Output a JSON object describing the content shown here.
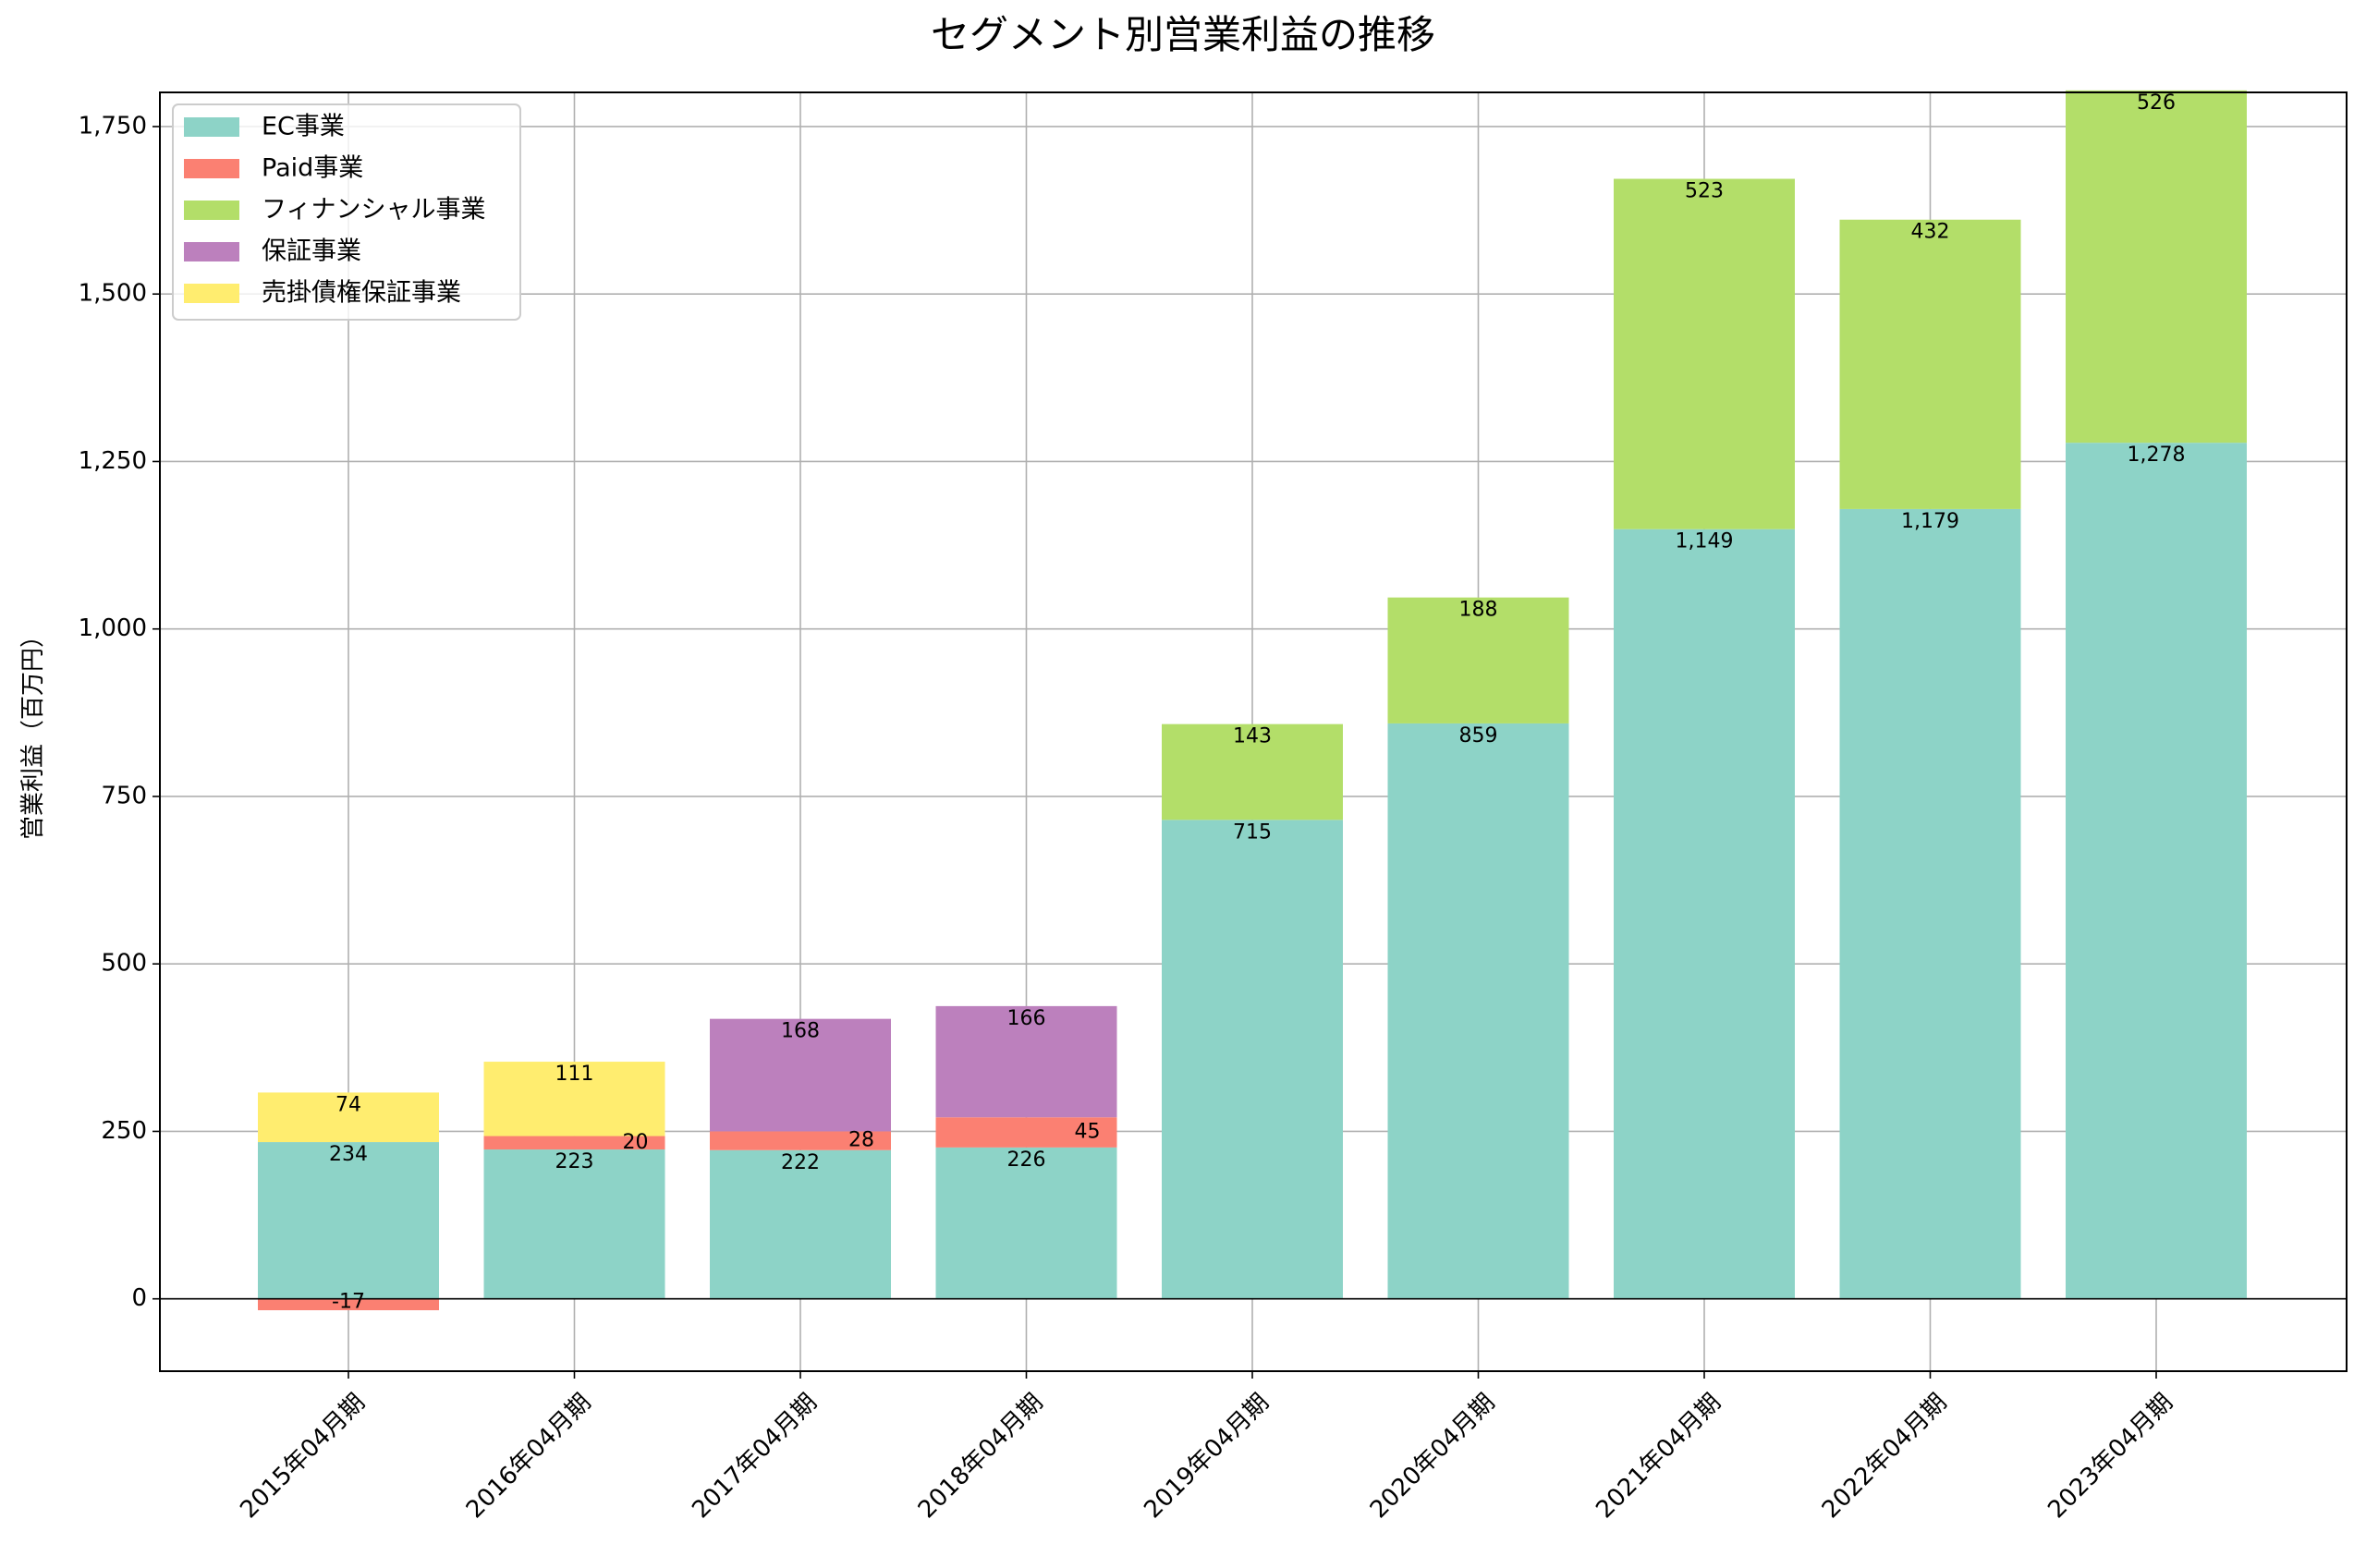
{
  "chart_data": {
    "type": "bar",
    "stacked": true,
    "title": "セグメント別営業利益の推移",
    "xlabel": "",
    "ylabel": "営業利益（百万円）",
    "ylim": [
      -108,
      1801
    ],
    "yticks": [
      0,
      250,
      500,
      750,
      1000,
      1250,
      1500,
      1750
    ],
    "ytick_labels": [
      "0",
      "250",
      "500",
      "750",
      "1,000",
      "1,250",
      "1,500",
      "1,750"
    ],
    "grid": true,
    "legend_position": "top-left",
    "categories": [
      "2015年04月期",
      "2016年04月期",
      "2017年04月期",
      "2018年04月期",
      "2019年04月期",
      "2020年04月期",
      "2021年04月期",
      "2022年04月期",
      "2023年04月期"
    ],
    "series": [
      {
        "name": "EC事業",
        "color": "#8dd3c7",
        "values": [
          234,
          223,
          222,
          226,
          715,
          859,
          1149,
          1179,
          1278
        ],
        "labels": [
          "234",
          "223",
          "222",
          "226",
          "715",
          "859",
          "1,149",
          "1,179",
          "1,278"
        ]
      },
      {
        "name": "Paid事業",
        "color": "#fb8072",
        "values": [
          -17,
          20,
          28,
          45,
          null,
          null,
          null,
          null,
          null
        ],
        "labels": [
          "-17",
          "20",
          "28",
          "45",
          null,
          null,
          null,
          null,
          null
        ]
      },
      {
        "name": "フィナンシャル事業",
        "color": "#b3de69",
        "values": [
          null,
          null,
          null,
          null,
          143,
          188,
          523,
          432,
          526
        ],
        "labels": [
          null,
          null,
          null,
          null,
          "143",
          "188",
          "523",
          "432",
          "526"
        ]
      },
      {
        "name": "保証事業",
        "color": "#bc80bd",
        "values": [
          null,
          null,
          168,
          166,
          null,
          null,
          null,
          null,
          null
        ],
        "labels": [
          null,
          null,
          "168",
          "166",
          null,
          null,
          null,
          null,
          null
        ]
      },
      {
        "name": "売掛債権保証事業",
        "color": "#ffed6f",
        "values": [
          74,
          111,
          null,
          null,
          null,
          null,
          null,
          null,
          null
        ],
        "labels": [
          "74",
          "111",
          null,
          null,
          null,
          null,
          null,
          null,
          null
        ]
      }
    ]
  }
}
